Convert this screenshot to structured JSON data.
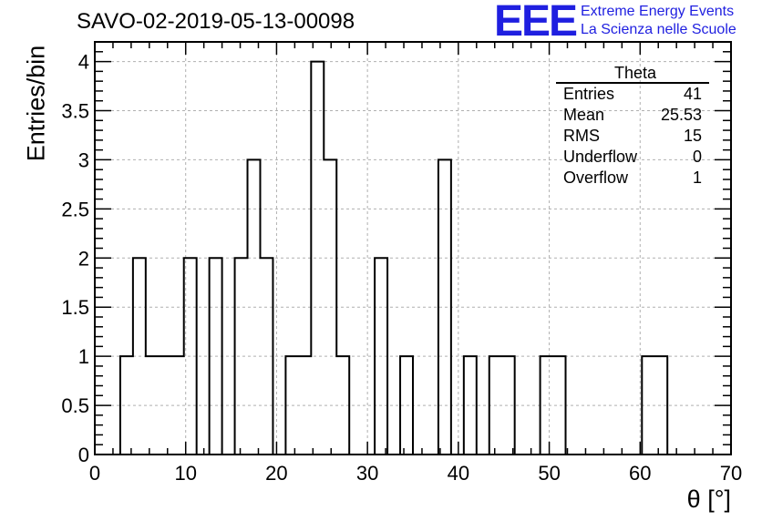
{
  "title": "SAVO-02-2019-05-13-00098",
  "logo": {
    "mark": "EEE",
    "line1": "Extreme Energy Events",
    "line2": "La Scienza nelle Scuole",
    "color": "#1f1fe0"
  },
  "stats": {
    "title": "Theta",
    "rows": [
      {
        "label": "Entries",
        "value": "41"
      },
      {
        "label": "Mean",
        "value": "25.53"
      },
      {
        "label": "RMS",
        "value": "15"
      },
      {
        "label": "Underflow",
        "value": "0"
      },
      {
        "label": "Overflow",
        "value": "1"
      }
    ]
  },
  "chart_data": {
    "type": "bar",
    "histogram": true,
    "xlabel": "θ [°]",
    "ylabel": "Entries/bin",
    "xlim": [
      0,
      70
    ],
    "ylim": [
      0,
      4.2
    ],
    "bin_width": 1.4,
    "xticks": [
      0,
      10,
      20,
      30,
      40,
      50,
      60,
      70
    ],
    "yticks": [
      0,
      0.5,
      1,
      1.5,
      2,
      2.5,
      3,
      3.5,
      4
    ],
    "ytick_labels": [
      "0",
      "0.5",
      "1",
      "1.5",
      "2",
      "2.5",
      "3",
      "3.5",
      "4"
    ],
    "grid": true,
    "bin_low_edges": [
      2.8,
      4.2,
      5.6,
      7.0,
      8.4,
      9.8,
      11.2,
      12.6,
      14.0,
      15.4,
      16.8,
      18.2,
      19.6,
      21.0,
      22.4,
      23.8,
      25.2,
      26.6,
      28.0,
      29.4,
      30.8,
      32.2,
      33.6,
      35.0,
      36.4,
      37.8,
      39.2,
      40.6,
      42.0,
      43.4,
      44.8,
      46.2,
      47.6,
      49.0,
      50.4,
      51.8,
      53.2,
      54.6,
      56.0,
      57.4,
      58.8,
      60.2,
      61.6,
      63.0
    ],
    "values": [
      1,
      2,
      1,
      1,
      1,
      2,
      0,
      2,
      0,
      2,
      3,
      2,
      0,
      1,
      1,
      4,
      3,
      1,
      0,
      0,
      2,
      0,
      1,
      0,
      0,
      3,
      0,
      1,
      0,
      1,
      1,
      0,
      0,
      1,
      1,
      0,
      0,
      0,
      0,
      0,
      0,
      1,
      1,
      0
    ],
    "line_color": "#000000",
    "grid_color": "#b0b0b0"
  }
}
